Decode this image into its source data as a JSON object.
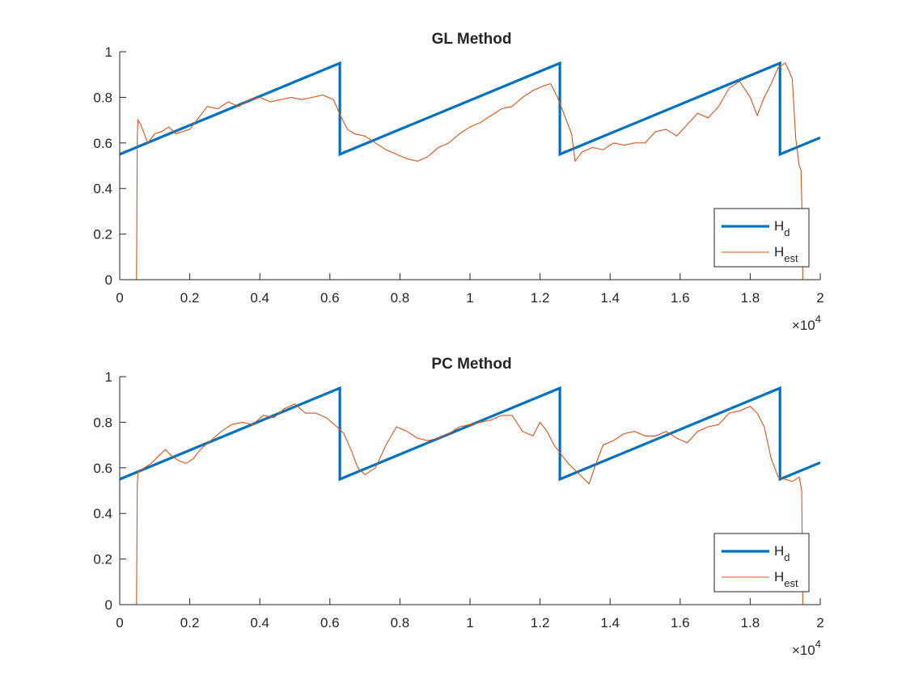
{
  "colors": {
    "hd": "#0072BD",
    "hest": "#D95319",
    "axis": "#262626",
    "background": "#ffffff"
  },
  "chart_data": [
    {
      "type": "line",
      "title": "GL Method",
      "xlabel": "",
      "ylabel": "",
      "xlim": [
        0,
        20000
      ],
      "ylim": [
        0,
        1
      ],
      "xticks": [
        0,
        2000,
        4000,
        6000,
        8000,
        10000,
        12000,
        14000,
        16000,
        18000,
        20000
      ],
      "xticklabels": [
        "0",
        "0.2",
        "0.4",
        "0.6",
        "0.8",
        "1",
        "1.2",
        "1.4",
        "1.6",
        "1.8",
        "2"
      ],
      "yticks": [
        0,
        0.2,
        0.4,
        0.6,
        0.8,
        1
      ],
      "yticklabels": [
        "0",
        "0.2",
        "0.4",
        "0.6",
        "0.8",
        "1"
      ],
      "x_exponent": {
        "base": "×10",
        "power": "4"
      },
      "grid": false,
      "legend_position": "bottom-right",
      "legend": [
        {
          "name": "H",
          "sub": "d"
        },
        {
          "name": "H",
          "sub": "est"
        }
      ],
      "series": [
        {
          "name": "H_d",
          "color": "#0072BD",
          "x": [
            0,
            6283,
            6283,
            12566,
            12566,
            18850,
            18850,
            20000
          ],
          "y": [
            0.55,
            0.95,
            0.55,
            0.95,
            0.55,
            0.95,
            0.55,
            0.623
          ]
        },
        {
          "name": "H_est",
          "color": "#D95319",
          "x": [
            0,
            480,
            500,
            520,
            600,
            800,
            1000,
            1200,
            1400,
            1600,
            1800,
            2000,
            2200,
            2500,
            2800,
            3100,
            3400,
            3700,
            4000,
            4300,
            4600,
            4900,
            5200,
            5500,
            5800,
            6100,
            6300,
            6500,
            6700,
            7000,
            7300,
            7600,
            7900,
            8200,
            8500,
            8800,
            9100,
            9400,
            9700,
            10000,
            10300,
            10600,
            10900,
            11200,
            11500,
            11800,
            12100,
            12300,
            12500,
            12700,
            12900,
            13000,
            13200,
            13500,
            13800,
            14100,
            14400,
            14700,
            15000,
            15300,
            15600,
            15900,
            16200,
            16500,
            16800,
            17100,
            17400,
            17700,
            18000,
            18200,
            18400,
            18600,
            18800,
            19000,
            19100,
            19200,
            19300,
            19400,
            19450,
            19480,
            19500,
            20000
          ],
          "y": [
            0,
            0,
            0.62,
            0.7,
            0.68,
            0.6,
            0.64,
            0.65,
            0.67,
            0.64,
            0.65,
            0.66,
            0.7,
            0.76,
            0.75,
            0.78,
            0.76,
            0.79,
            0.8,
            0.78,
            0.79,
            0.8,
            0.79,
            0.8,
            0.81,
            0.79,
            0.72,
            0.66,
            0.64,
            0.63,
            0.6,
            0.57,
            0.55,
            0.53,
            0.52,
            0.54,
            0.58,
            0.6,
            0.64,
            0.67,
            0.69,
            0.72,
            0.75,
            0.76,
            0.8,
            0.83,
            0.85,
            0.86,
            0.8,
            0.72,
            0.64,
            0.52,
            0.56,
            0.58,
            0.57,
            0.6,
            0.59,
            0.6,
            0.6,
            0.65,
            0.66,
            0.63,
            0.68,
            0.73,
            0.71,
            0.76,
            0.84,
            0.87,
            0.8,
            0.72,
            0.8,
            0.86,
            0.93,
            0.95,
            0.92,
            0.88,
            0.62,
            0.5,
            0.48,
            0.3,
            0,
            0
          ]
        }
      ]
    },
    {
      "type": "line",
      "title": "PC Method",
      "xlabel": "",
      "ylabel": "",
      "xlim": [
        0,
        20000
      ],
      "ylim": [
        0,
        1
      ],
      "xticks": [
        0,
        2000,
        4000,
        6000,
        8000,
        10000,
        12000,
        14000,
        16000,
        18000,
        20000
      ],
      "xticklabels": [
        "0",
        "0.2",
        "0.4",
        "0.6",
        "0.8",
        "1",
        "1.2",
        "1.4",
        "1.6",
        "1.8",
        "2"
      ],
      "yticks": [
        0,
        0.2,
        0.4,
        0.6,
        0.8,
        1
      ],
      "yticklabels": [
        "0",
        "0.2",
        "0.4",
        "0.6",
        "0.8",
        "1"
      ],
      "x_exponent": {
        "base": "×10",
        "power": "4"
      },
      "grid": false,
      "legend_position": "bottom-right",
      "legend": [
        {
          "name": "H",
          "sub": "d"
        },
        {
          "name": "H",
          "sub": "est"
        }
      ],
      "series": [
        {
          "name": "H_d",
          "color": "#0072BD",
          "x": [
            0,
            6283,
            6283,
            12566,
            12566,
            18850,
            18850,
            20000
          ],
          "y": [
            0.55,
            0.95,
            0.55,
            0.95,
            0.55,
            0.95,
            0.55,
            0.623
          ]
        },
        {
          "name": "H_est",
          "color": "#D95319",
          "x": [
            0,
            480,
            500,
            520,
            700,
            900,
            1100,
            1300,
            1500,
            1700,
            1900,
            2100,
            2300,
            2600,
            2900,
            3200,
            3500,
            3800,
            4100,
            4400,
            4700,
            5000,
            5300,
            5600,
            5900,
            6200,
            6400,
            6600,
            6800,
            7000,
            7300,
            7600,
            7900,
            8200,
            8500,
            8800,
            9100,
            9400,
            9700,
            10000,
            10300,
            10600,
            10900,
            11200,
            11500,
            11800,
            12000,
            12200,
            12400,
            12600,
            12800,
            13000,
            13200,
            13400,
            13600,
            13800,
            14100,
            14400,
            14700,
            15000,
            15300,
            15600,
            15900,
            16200,
            16500,
            16800,
            17100,
            17400,
            17700,
            18000,
            18200,
            18400,
            18600,
            18800,
            19000,
            19200,
            19400,
            19470,
            19500,
            20000
          ],
          "y": [
            0,
            0,
            0.52,
            0.58,
            0.6,
            0.62,
            0.65,
            0.68,
            0.65,
            0.63,
            0.62,
            0.64,
            0.68,
            0.72,
            0.76,
            0.79,
            0.8,
            0.79,
            0.83,
            0.82,
            0.86,
            0.88,
            0.84,
            0.84,
            0.82,
            0.78,
            0.75,
            0.68,
            0.6,
            0.57,
            0.6,
            0.7,
            0.78,
            0.76,
            0.73,
            0.72,
            0.73,
            0.75,
            0.78,
            0.79,
            0.8,
            0.81,
            0.83,
            0.83,
            0.76,
            0.74,
            0.8,
            0.76,
            0.7,
            0.66,
            0.62,
            0.59,
            0.56,
            0.53,
            0.62,
            0.7,
            0.72,
            0.75,
            0.76,
            0.74,
            0.74,
            0.76,
            0.73,
            0.71,
            0.76,
            0.78,
            0.79,
            0.84,
            0.85,
            0.87,
            0.84,
            0.78,
            0.64,
            0.56,
            0.55,
            0.54,
            0.56,
            0.5,
            0,
            0
          ]
        }
      ]
    }
  ]
}
